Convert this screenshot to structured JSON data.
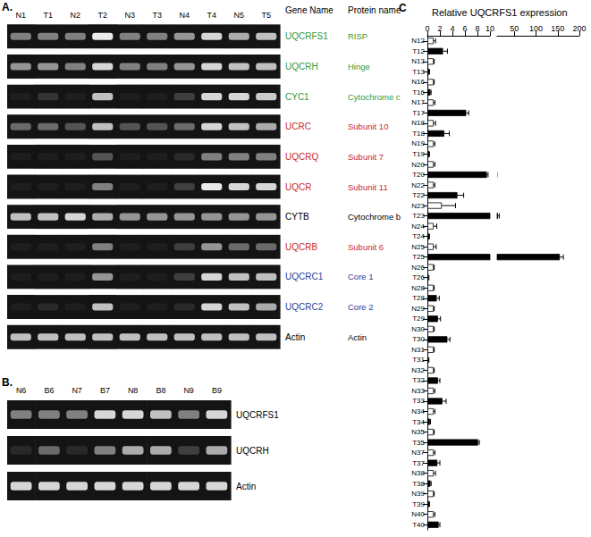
{
  "chart_data": [
    {
      "type": "gel",
      "panel": "A.",
      "lanes": [
        "N1",
        "T1",
        "N2",
        "T2",
        "N3",
        "T3",
        "N4",
        "T4",
        "N5",
        "T5"
      ],
      "headers": [
        "Gene Name",
        "Protein name"
      ],
      "intensity_range": [
        0,
        1
      ],
      "rows": [
        {
          "gene": "UQCRFS1",
          "protein": "RISP",
          "color": "#2e9a3a",
          "intensity": [
            0.5,
            0.5,
            0.5,
            1.0,
            0.5,
            0.5,
            0.6,
            0.9,
            0.7,
            0.8
          ]
        },
        {
          "gene": "UQCRH",
          "protein": "Hinge",
          "color": "#2e9a3a",
          "intensity": [
            0.6,
            0.6,
            0.5,
            0.9,
            0.5,
            0.5,
            0.6,
            0.9,
            0.8,
            0.8
          ]
        },
        {
          "gene": "CYC1",
          "protein": "Cytochrome c",
          "color": "#2e9a3a",
          "intensity": [
            0.05,
            0.15,
            0.05,
            0.8,
            0.05,
            0.05,
            0.2,
            0.9,
            0.9,
            0.85
          ]
        },
        {
          "gene": "UCRC",
          "protein": "Subunit 10",
          "color": "#cc2a2a",
          "intensity": [
            0.4,
            0.4,
            0.3,
            0.8,
            0.3,
            0.3,
            0.4,
            0.9,
            0.8,
            0.7
          ]
        },
        {
          "gene": "UQCRQ",
          "protein": "Subunit 7",
          "color": "#cc2a2a",
          "intensity": [
            0.05,
            0.05,
            0.05,
            0.3,
            0.05,
            0.05,
            0.1,
            0.5,
            0.5,
            0.5
          ]
        },
        {
          "gene": "UQCR",
          "protein": "Subunit 11",
          "color": "#cc2a2a",
          "intensity": [
            0.05,
            0.05,
            0.05,
            0.5,
            0.05,
            0.05,
            0.2,
            1.0,
            0.9,
            0.9
          ]
        },
        {
          "gene": "CYTB",
          "protein": "Cytochrome b",
          "color": "#000000",
          "intensity": [
            0.8,
            0.8,
            0.9,
            0.7,
            0.6,
            0.6,
            0.6,
            0.6,
            0.6,
            0.6
          ]
        },
        {
          "gene": "UQCRB",
          "protein": "Subunit 6",
          "color": "#cc2a2a",
          "intensity": [
            0.05,
            0.05,
            0.05,
            0.5,
            0.05,
            0.05,
            0.2,
            0.6,
            0.4,
            0.4
          ]
        },
        {
          "gene": "UQCRC1",
          "protein": "Core 1",
          "color": "#1f3f99",
          "intensity": [
            0.05,
            0.05,
            0.05,
            0.6,
            0.05,
            0.05,
            0.2,
            0.9,
            0.8,
            0.8
          ]
        },
        {
          "gene": "UQCRC2",
          "protein": "Core 2",
          "color": "#1f3f99",
          "intensity": [
            0.05,
            0.1,
            0.05,
            0.8,
            0.05,
            0.05,
            0.1,
            0.9,
            0.8,
            0.7
          ]
        },
        {
          "gene": "Actin",
          "protein": "Actin",
          "color": "#000000",
          "intensity": [
            0.8,
            0.8,
            0.8,
            0.8,
            0.8,
            0.8,
            0.8,
            0.8,
            0.8,
            0.8
          ]
        }
      ]
    },
    {
      "type": "gel",
      "panel": "B.",
      "lanes": [
        "N6",
        "B6",
        "N7",
        "B7",
        "N8",
        "B8",
        "N9",
        "B9"
      ],
      "intensity_range": [
        0,
        1
      ],
      "rows": [
        {
          "gene": "UQCRFS1",
          "color": "#000000",
          "intensity": [
            0.5,
            0.5,
            0.5,
            0.9,
            0.9,
            0.8,
            0.5,
            0.9
          ]
        },
        {
          "gene": "UQCRH",
          "color": "#000000",
          "intensity": [
            0.1,
            0.4,
            0.1,
            0.5,
            0.7,
            0.7,
            0.2,
            0.7
          ]
        },
        {
          "gene": "Actin",
          "color": "#000000",
          "intensity": [
            0.9,
            0.9,
            0.9,
            0.9,
            0.9,
            0.9,
            0.9,
            0.9
          ]
        }
      ]
    },
    {
      "type": "bar",
      "panel": "C",
      "title": "Relative UQCRFS1 expression",
      "orientation": "horizontal",
      "categories": [
        "N12",
        "T12",
        "N13",
        "T13",
        "N16",
        "T16",
        "N17",
        "T17",
        "N18",
        "T18",
        "N19",
        "T19",
        "N20",
        "T20",
        "N22",
        "T22",
        "N23",
        "T23",
        "N24",
        "T24",
        "N25",
        "T25",
        "N26",
        "T26",
        "N28",
        "T28",
        "N29",
        "T29",
        "N30",
        "T30",
        "N31",
        "T31",
        "N32",
        "T32",
        "N33",
        "T33",
        "N34",
        "T34",
        "N35",
        "T35",
        "N37",
        "T37",
        "N38",
        "T38",
        "N39",
        "T39",
        "N40",
        "T40"
      ],
      "values": [
        1.0,
        2.5,
        1.0,
        0.3,
        1.0,
        0.5,
        1.0,
        6.2,
        1.0,
        2.7,
        1.0,
        0.3,
        1.0,
        9.5,
        1.0,
        4.8,
        2.3,
        12,
        1.0,
        0.3,
        1.0,
        155,
        1.0,
        0.2,
        1.0,
        1.5,
        1.0,
        1.7,
        1.0,
        3.2,
        1.0,
        0.2,
        1.0,
        1.7,
        1.0,
        2.4,
        1.0,
        0.4,
        1.0,
        8.1,
        1.0,
        1.6,
        1.0,
        0.5,
        1.0,
        0.3,
        1.0,
        1.8
      ],
      "errors": [
        0.3,
        0.7,
        0.1,
        0.05,
        0.1,
        0.1,
        0.2,
        0.4,
        0.3,
        0.8,
        0.2,
        0.05,
        0.2,
        0.2,
        0.2,
        1.0,
        2.2,
        3,
        0.5,
        0.05,
        0.4,
        8,
        0.1,
        0.05,
        0.1,
        0.4,
        0.1,
        0.4,
        0.1,
        0.4,
        0.1,
        0.05,
        0.1,
        0.3,
        0.2,
        0.6,
        0.2,
        0.1,
        0.1,
        0.2,
        0.2,
        0.4,
        0.3,
        0.1,
        0.1,
        0.05,
        0.2,
        0.2
      ],
      "colors": [
        "#ffffff",
        "#000000",
        "#ffffff",
        "#000000",
        "#ffffff",
        "#000000",
        "#ffffff",
        "#000000",
        "#ffffff",
        "#000000",
        "#ffffff",
        "#000000",
        "#ffffff",
        "#000000",
        "#ffffff",
        "#000000",
        "#ffffff",
        "#000000",
        "#ffffff",
        "#000000",
        "#ffffff",
        "#000000",
        "#ffffff",
        "#000000",
        "#ffffff",
        "#000000",
        "#ffffff",
        "#000000",
        "#ffffff",
        "#000000",
        "#ffffff",
        "#000000",
        "#ffffff",
        "#000000",
        "#ffffff",
        "#000000",
        "#ffffff",
        "#000000",
        "#ffffff",
        "#000000",
        "#ffffff",
        "#000000",
        "#ffffff",
        "#000000",
        "#ffffff",
        "#000000",
        "#ffffff",
        "#000000"
      ],
      "xlim": [
        0,
        200
      ],
      "xticks": [
        0,
        2,
        4,
        6,
        8,
        10,
        50,
        100,
        150,
        200
      ],
      "x_break": 10
    }
  ]
}
